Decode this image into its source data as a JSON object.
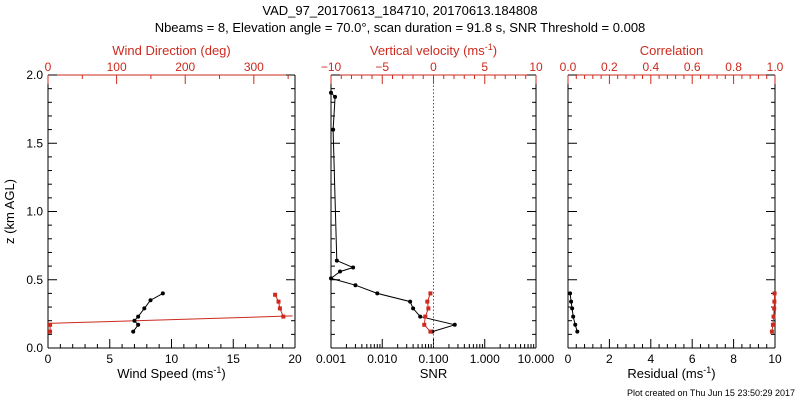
{
  "header": {
    "title": "VAD_97_20170613_184710, 20170613.184808",
    "subtitle": "Nbeams = 8, Elevation angle = 70.0°, scan duration = 91.8 s, SNR Threshold = 0.008"
  },
  "footer": {
    "credit": "Plot created on Thu Jun 15 23:50:29 2017"
  },
  "colors": {
    "black": "#000000",
    "red": "#cc2a1e",
    "white": "#ffffff"
  },
  "chart_data": [
    {
      "type": "line",
      "name": "wind",
      "ylabel": "z (km AGL)",
      "ylim": [
        0,
        2.0
      ],
      "yticks": [
        "0.0",
        "0.5",
        "1.0",
        "1.5",
        "2.0"
      ],
      "bottom_axis": {
        "label_text": "Wind Speed (ms",
        "label_sup": "-1",
        "label_end": ")",
        "xlim": [
          0,
          20
        ],
        "ticks": [
          "0",
          "5",
          "10",
          "15",
          "20"
        ]
      },
      "top_axis": {
        "label_text": "Wind Direction (deg)",
        "xlim": [
          0,
          360
        ],
        "ticks": [
          "0",
          "100",
          "200",
          "300"
        ]
      },
      "series": [
        {
          "axis": "bottom",
          "color": "black",
          "x": [
            9.3,
            8.3,
            7.8,
            7.3,
            7.0,
            7.3,
            6.9
          ],
          "y": [
            0.4,
            0.35,
            0.29,
            0.23,
            0.2,
            0.17,
            0.12
          ]
        },
        {
          "axis": "top",
          "color": "red",
          "x": [
            331,
            336,
            338,
            343,
            3,
            3
          ],
          "y": [
            0.39,
            0.34,
            0.29,
            0.23,
            0.17,
            0.12
          ]
        }
      ],
      "fit_line": {
        "axis": "bottom",
        "color": "red",
        "x": [
          0,
          19.8
        ],
        "y": [
          0.18,
          0.235
        ]
      }
    },
    {
      "type": "line",
      "name": "snr",
      "bottom_axis": {
        "label_text": "SNR",
        "scale": "log",
        "xlim": [
          0.001,
          10
        ],
        "ticks": [
          "0.001",
          "0.010",
          "0.100",
          "1.000",
          "10.000"
        ]
      },
      "top_axis": {
        "label_text": "Vertical velocity (ms",
        "label_sup": "-1",
        "label_end": ")",
        "xlim": [
          -10,
          10
        ],
        "ticks": [
          "−10",
          "−5",
          "0",
          "5",
          "10"
        ]
      },
      "series": [
        {
          "axis": "bottom",
          "color": "black",
          "x": [
            0.001,
            0.0012,
            0.0011,
            0.0013,
            0.0027,
            0.0015,
            0.001,
            0.003,
            0.008,
            0.035,
            0.04,
            0.055,
            0.26,
            0.095
          ],
          "y": [
            1.87,
            1.84,
            1.6,
            0.64,
            0.59,
            0.56,
            0.51,
            0.46,
            0.4,
            0.34,
            0.29,
            0.23,
            0.17,
            0.12
          ]
        },
        {
          "axis": "top",
          "color": "red",
          "x": [
            -0.3,
            -0.6,
            -0.5,
            -0.8,
            -0.9,
            -0.3
          ],
          "y": [
            0.4,
            0.34,
            0.29,
            0.23,
            0.17,
            0.12
          ]
        }
      ],
      "ref_line": {
        "axis": "top",
        "value": 0,
        "color": "red",
        "style": "dotted"
      }
    },
    {
      "type": "line",
      "name": "residual",
      "bottom_axis": {
        "label_text": "Residual (ms",
        "label_sup": "-1",
        "label_end": ")",
        "xlim": [
          0,
          10
        ],
        "ticks": [
          "0",
          "2",
          "4",
          "6",
          "8",
          "10"
        ]
      },
      "top_axis": {
        "label_text": "Correlation",
        "xlim": [
          0,
          1.0
        ],
        "ticks": [
          "0.0",
          "0.2",
          "0.4",
          "0.6",
          "0.8",
          "1.0"
        ]
      },
      "series": [
        {
          "axis": "bottom",
          "color": "black",
          "x": [
            0.1,
            0.15,
            0.2,
            0.25,
            0.35,
            0.45
          ],
          "y": [
            0.4,
            0.34,
            0.29,
            0.23,
            0.17,
            0.12
          ]
        },
        {
          "axis": "top",
          "color": "red",
          "x": [
            0.998,
            0.997,
            0.996,
            0.993,
            0.99,
            0.985
          ],
          "y": [
            0.4,
            0.34,
            0.29,
            0.23,
            0.17,
            0.12
          ]
        }
      ]
    }
  ]
}
